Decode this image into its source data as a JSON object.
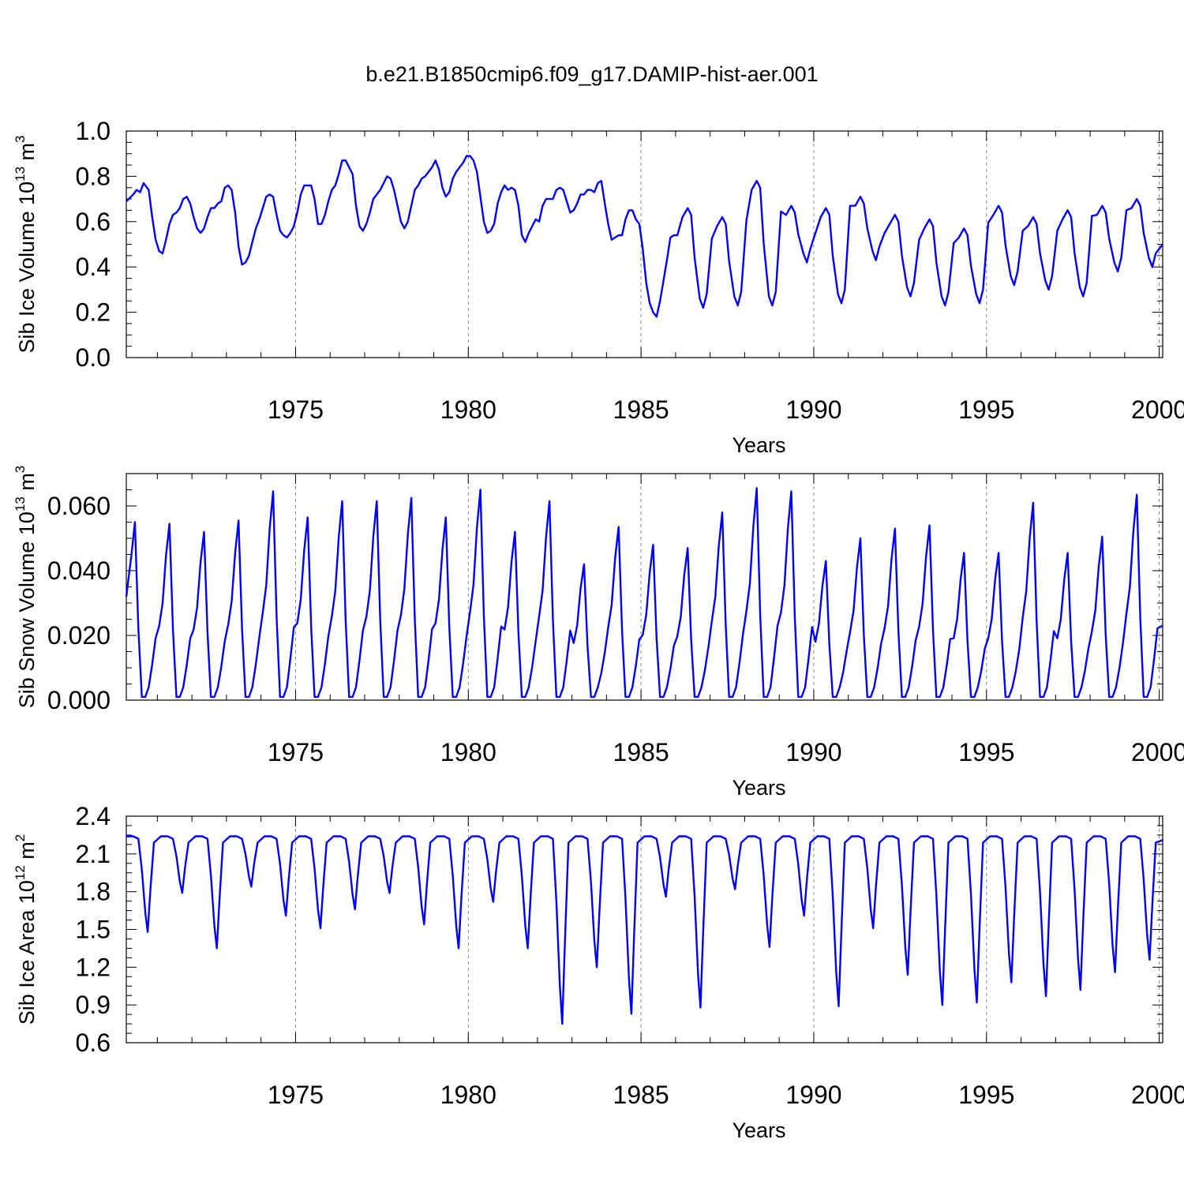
{
  "figure_title": "b.e21.B1850cmip6.f09_g17.DAMIP-hist-aer.001",
  "colors": {
    "series": "#0000ff",
    "axis": "#000000",
    "grid": "#888888",
    "background": "#ffffff"
  },
  "chart_data": [
    {
      "type": "line",
      "id": "ice-volume",
      "title": "",
      "ylabel": "Sib Ice Volume 10",
      "ylabel_exponent": "13",
      "ylabel_unit": " m",
      "ylabel_unit_exponent": "3",
      "xlabel": "Years",
      "xlim": [
        1970.1,
        2000.1
      ],
      "ylim": [
        0.0,
        1.0
      ],
      "y_ticks": [
        0.0,
        0.2,
        0.4,
        0.6,
        0.8,
        1.0
      ],
      "y_tick_labels": [
        "0.0",
        "0.2",
        "0.4",
        "0.6",
        "0.8",
        "1.0"
      ],
      "x_ticks": [
        1975,
        1980,
        1985,
        1990,
        1995,
        2000
      ],
      "x_tick_labels": [
        "1975",
        "1980",
        "1985",
        "1990",
        "1995",
        "2000"
      ],
      "grid": "vertical dashed at major x ticks",
      "series": [
        {
          "name": "Sib Ice Volume",
          "color": "#0000ff",
          "points": [
            [
              1970.1,
              0.69
            ],
            [
              1970.3,
              0.72
            ],
            [
              1970.4,
              0.74
            ],
            [
              1970.5,
              0.73
            ],
            [
              1970.6,
              0.77
            ],
            [
              1970.75,
              0.74
            ],
            [
              1970.85,
              0.62
            ],
            [
              1970.95,
              0.52
            ],
            [
              1971.05,
              0.47
            ],
            [
              1971.15,
              0.46
            ],
            [
              1971.25,
              0.52
            ],
            [
              1971.35,
              0.59
            ],
            [
              1971.45,
              0.63
            ],
            [
              1971.55,
              0.64
            ],
            [
              1971.65,
              0.66
            ],
            [
              1971.75,
              0.7
            ],
            [
              1971.85,
              0.71
            ],
            [
              1971.95,
              0.68
            ],
            [
              1972.05,
              0.62
            ],
            [
              1972.15,
              0.57
            ],
            [
              1972.25,
              0.55
            ],
            [
              1972.35,
              0.57
            ],
            [
              1972.45,
              0.62
            ],
            [
              1972.55,
              0.66
            ],
            [
              1972.65,
              0.66
            ],
            [
              1972.75,
              0.68
            ],
            [
              1972.85,
              0.69
            ],
            [
              1972.95,
              0.75
            ],
            [
              1973.05,
              0.76
            ],
            [
              1973.15,
              0.74
            ],
            [
              1973.25,
              0.64
            ],
            [
              1973.35,
              0.49
            ],
            [
              1973.45,
              0.41
            ],
            [
              1973.55,
              0.42
            ],
            [
              1973.65,
              0.45
            ],
            [
              1973.75,
              0.51
            ],
            [
              1973.85,
              0.57
            ],
            [
              1973.95,
              0.61
            ],
            [
              1974.05,
              0.66
            ],
            [
              1974.15,
              0.71
            ],
            [
              1974.25,
              0.72
            ],
            [
              1974.35,
              0.71
            ],
            [
              1974.45,
              0.63
            ],
            [
              1974.55,
              0.56
            ],
            [
              1974.65,
              0.54
            ],
            [
              1974.75,
              0.53
            ],
            [
              1974.85,
              0.55
            ],
            [
              1974.95,
              0.58
            ],
            [
              1975.05,
              0.64
            ],
            [
              1975.15,
              0.72
            ],
            [
              1975.25,
              0.76
            ],
            [
              1975.35,
              0.76
            ],
            [
              1975.45,
              0.76
            ],
            [
              1975.55,
              0.7
            ],
            [
              1975.65,
              0.59
            ],
            [
              1975.75,
              0.59
            ],
            [
              1975.85,
              0.63
            ],
            [
              1975.95,
              0.69
            ],
            [
              1976.05,
              0.74
            ],
            [
              1976.15,
              0.76
            ],
            [
              1976.25,
              0.81
            ],
            [
              1976.35,
              0.87
            ],
            [
              1976.45,
              0.87
            ],
            [
              1976.55,
              0.84
            ],
            [
              1976.65,
              0.81
            ],
            [
              1976.75,
              0.67
            ],
            [
              1976.85,
              0.58
            ],
            [
              1976.95,
              0.56
            ],
            [
              1977.05,
              0.59
            ],
            [
              1977.15,
              0.64
            ],
            [
              1977.25,
              0.7
            ],
            [
              1977.35,
              0.72
            ],
            [
              1977.45,
              0.74
            ],
            [
              1977.55,
              0.77
            ],
            [
              1977.65,
              0.8
            ],
            [
              1977.75,
              0.79
            ],
            [
              1977.85,
              0.74
            ],
            [
              1977.95,
              0.67
            ],
            [
              1978.05,
              0.6
            ],
            [
              1978.15,
              0.57
            ],
            [
              1978.25,
              0.6
            ],
            [
              1978.35,
              0.67
            ],
            [
              1978.45,
              0.74
            ],
            [
              1978.55,
              0.76
            ],
            [
              1978.65,
              0.79
            ],
            [
              1978.75,
              0.8
            ],
            [
              1978.85,
              0.82
            ],
            [
              1978.95,
              0.84
            ],
            [
              1979.05,
              0.87
            ],
            [
              1979.15,
              0.83
            ],
            [
              1979.25,
              0.75
            ],
            [
              1979.35,
              0.71
            ],
            [
              1979.45,
              0.73
            ],
            [
              1979.55,
              0.79
            ],
            [
              1979.65,
              0.82
            ],
            [
              1979.75,
              0.84
            ],
            [
              1979.85,
              0.86
            ],
            [
              1979.95,
              0.89
            ],
            [
              1980.05,
              0.89
            ],
            [
              1980.15,
              0.87
            ],
            [
              1980.25,
              0.82
            ],
            [
              1980.35,
              0.71
            ],
            [
              1980.45,
              0.6
            ],
            [
              1980.55,
              0.55
            ],
            [
              1980.65,
              0.56
            ],
            [
              1980.75,
              0.59
            ],
            [
              1980.85,
              0.68
            ],
            [
              1980.95,
              0.73
            ],
            [
              1981.05,
              0.76
            ],
            [
              1981.15,
              0.74
            ],
            [
              1981.25,
              0.75
            ],
            [
              1981.35,
              0.74
            ],
            [
              1981.45,
              0.67
            ],
            [
              1981.55,
              0.54
            ],
            [
              1981.65,
              0.51
            ],
            [
              1981.75,
              0.55
            ],
            [
              1981.85,
              0.58
            ],
            [
              1981.95,
              0.61
            ],
            [
              1982.05,
              0.6
            ],
            [
              1982.15,
              0.67
            ],
            [
              1982.25,
              0.7
            ],
            [
              1982.35,
              0.7
            ],
            [
              1982.45,
              0.7
            ],
            [
              1982.55,
              0.74
            ],
            [
              1982.65,
              0.75
            ],
            [
              1982.75,
              0.74
            ],
            [
              1982.85,
              0.69
            ],
            [
              1982.95,
              0.64
            ],
            [
              1983.05,
              0.65
            ],
            [
              1983.15,
              0.68
            ],
            [
              1983.25,
              0.72
            ],
            [
              1983.35,
              0.72
            ],
            [
              1983.45,
              0.74
            ],
            [
              1983.55,
              0.74
            ],
            [
              1983.65,
              0.73
            ],
            [
              1983.75,
              0.77
            ],
            [
              1983.85,
              0.78
            ],
            [
              1983.95,
              0.68
            ],
            [
              1984.05,
              0.59
            ],
            [
              1984.15,
              0.52
            ],
            [
              1984.25,
              0.53
            ],
            [
              1984.35,
              0.54
            ],
            [
              1984.45,
              0.54
            ],
            [
              1984.55,
              0.61
            ],
            [
              1984.65,
              0.65
            ],
            [
              1984.75,
              0.65
            ],
            [
              1984.85,
              0.61
            ],
            [
              1984.95,
              0.59
            ],
            [
              1985.05,
              0.48
            ],
            [
              1985.15,
              0.33
            ],
            [
              1985.25,
              0.24
            ],
            [
              1985.35,
              0.2
            ],
            [
              1985.45,
              0.18
            ],
            [
              1985.55,
              0.25
            ],
            [
              1985.65,
              0.34
            ],
            [
              1985.75,
              0.43
            ],
            [
              1985.85,
              0.53
            ],
            [
              1985.95,
              0.54
            ]
          ]
        }
      ]
    },
    {
      "type": "line",
      "id": "snow-volume",
      "title": "",
      "ylabel": "Sib Snow Volume 10",
      "ylabel_exponent": "13",
      "ylabel_unit": " m",
      "ylabel_unit_exponent": "3",
      "xlabel": "Years",
      "xlim": [
        1970.1,
        2000.1
      ],
      "ylim": [
        0.0,
        0.07
      ],
      "y_ticks": [
        0.0,
        0.02,
        0.04,
        0.06
      ],
      "y_tick_labels": [
        "0.000",
        "0.020",
        "0.040",
        "0.060"
      ],
      "x_ticks": [
        1975,
        1980,
        1985,
        1990,
        1995,
        2000
      ],
      "x_tick_labels": [
        "1975",
        "1980",
        "1985",
        "1990",
        "1995",
        "2000"
      ],
      "grid": "vertical dashed at major x ticks",
      "series": [
        {
          "name": "Sib Snow Volume",
          "color": "#0000ff",
          "annual": {
            "start_year": 1970,
            "peak_values": [
              0.055,
              0.0545,
              0.052,
              0.0555,
              0.0645,
              0.0565,
              0.0615,
              0.0615,
              0.0625,
              0.0565,
              0.065,
              0.052,
              0.0615,
              0.042,
              0.0535,
              0.048,
              0.047,
              0.058,
              0.0655,
              0.0645,
              0.043,
              0.05,
              0.053,
              0.054,
              0.0455,
              0.0455,
              0.061,
              0.0455,
              0.0505,
              0.0635
            ],
            "first_value": 0.032,
            "last_value": 0.023
          }
        }
      ]
    },
    {
      "type": "line",
      "id": "ice-area",
      "title": "",
      "ylabel": "Sib Ice Area 10",
      "ylabel_exponent": "12",
      "ylabel_unit": " m",
      "ylabel_unit_exponent": "2",
      "xlabel": "Years",
      "xlim": [
        1970.1,
        2000.1
      ],
      "ylim": [
        0.6,
        2.4
      ],
      "y_ticks": [
        0.6,
        0.9,
        1.2,
        1.5,
        1.8,
        2.1,
        2.4
      ],
      "y_tick_labels": [
        "0.6",
        "0.9",
        "1.2",
        "1.5",
        "1.8",
        "2.1",
        "2.4"
      ],
      "x_ticks": [
        1975,
        1980,
        1985,
        1990,
        1995,
        2000
      ],
      "x_tick_labels": [
        "1975",
        "1980",
        "1985",
        "1990",
        "1995",
        "2000"
      ],
      "grid": "vertical dashed at major x ticks",
      "series": [
        {
          "name": "Sib Ice Area",
          "color": "#0000ff",
          "annual": {
            "start_year": 1970,
            "max_value": 2.24,
            "min_values": [
              1.48,
              1.79,
              1.35,
              1.84,
              1.61,
              1.51,
              1.66,
              1.79,
              1.54,
              1.35,
              1.72,
              1.35,
              0.75,
              1.2,
              0.83,
              1.76,
              0.88,
              1.82,
              1.36,
              1.61,
              0.89,
              1.51,
              1.14,
              0.9,
              0.92,
              1.08,
              0.97,
              1.02,
              1.16,
              1.26
            ],
            "last_value": 2.21
          }
        }
      ]
    }
  ]
}
